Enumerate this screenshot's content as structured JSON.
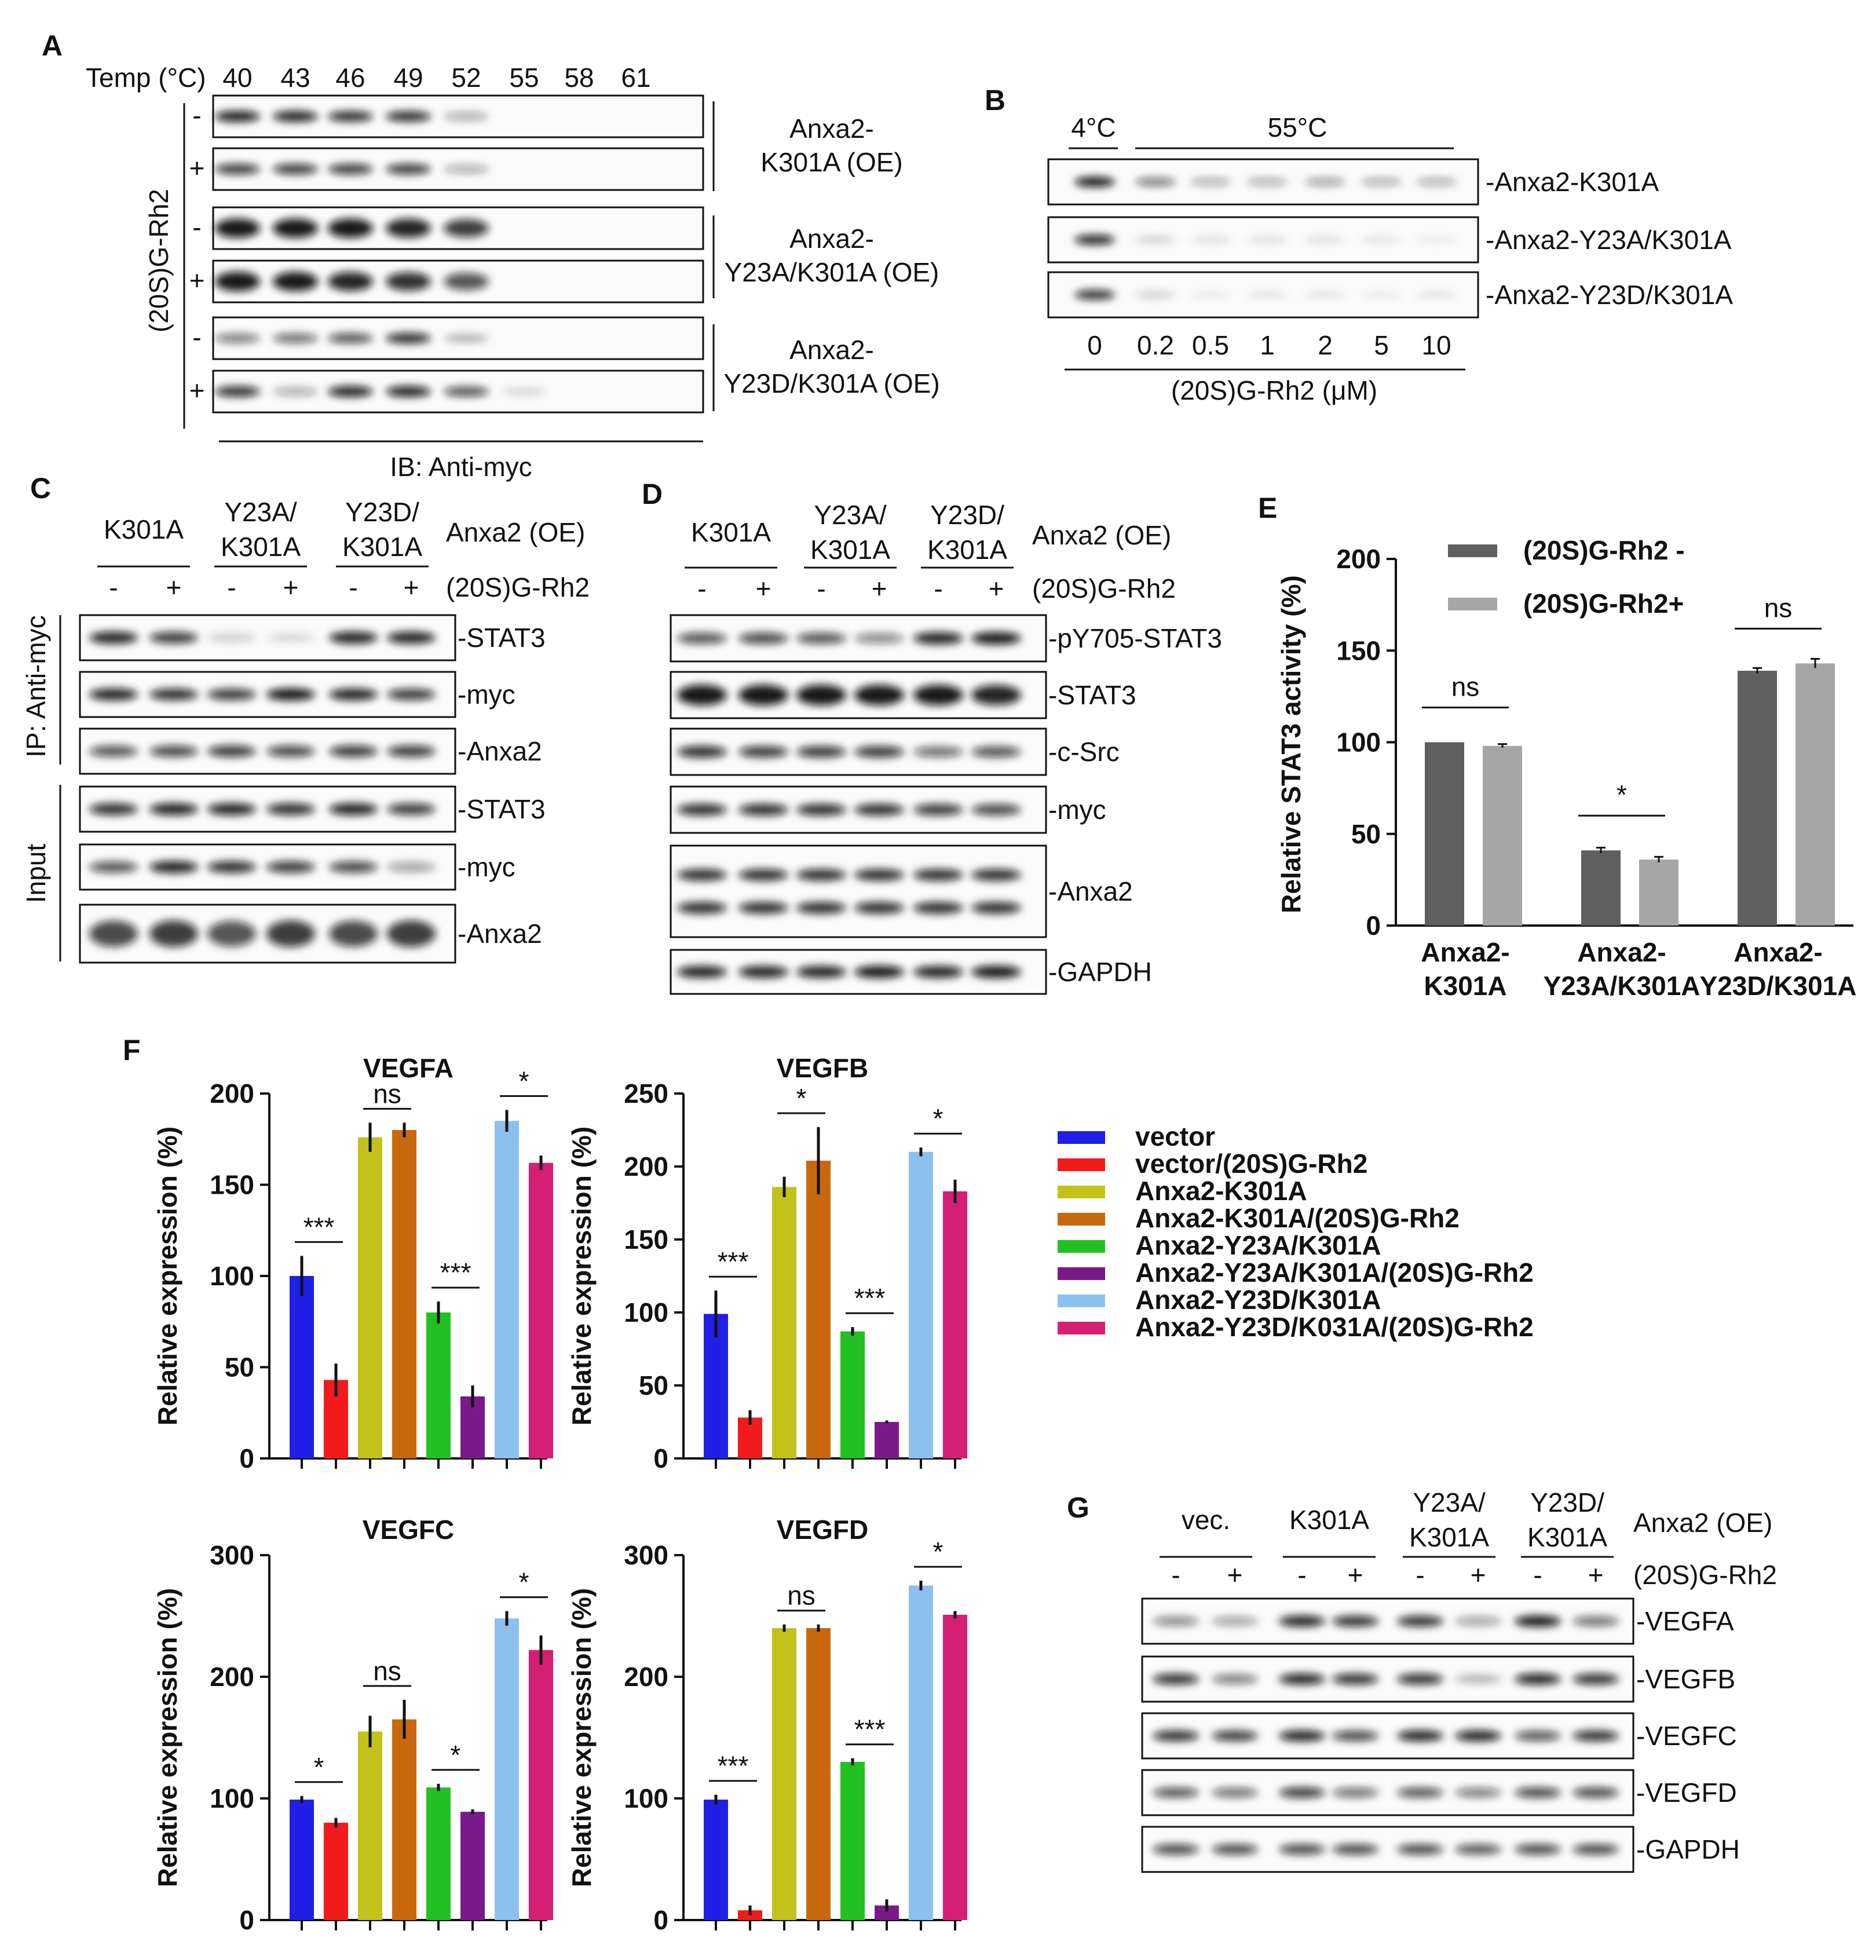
{
  "colors": {
    "vector": "#1f1fe6",
    "vector_rh2": "#f21b1b",
    "k301a": "#c2c21a",
    "k301a_rh2": "#c8680c",
    "y23a": "#22c122",
    "y23a_rh2": "#7a1a8a",
    "y23d": "#8ec0ef",
    "y23d_rh2": "#d51f74",
    "stat_minus": "#5f5f5f",
    "stat_plus": "#a6a6a6"
  },
  "panelA": {
    "label": "A",
    "temp_header": "Temp (°C)",
    "temps": [
      "40",
      "43",
      "46",
      "49",
      "52",
      "55",
      "58",
      "61"
    ],
    "side_label": "(20S)G-Rh2",
    "signs": [
      "-",
      "+",
      "-",
      "+",
      "-",
      "+"
    ],
    "groups": [
      {
        "line1": "Anxa2-",
        "line2": "K301A (OE)"
      },
      {
        "line1": "Anxa2-",
        "line2": "Y23A/K301A (OE)"
      },
      {
        "line1": "Anxa2-",
        "line2": "Y23D/K301A (OE)"
      }
    ],
    "footer": "IB: Anti-myc"
  },
  "panelB": {
    "label": "B",
    "temp_cold": "4°C",
    "temp_hot": "55°C",
    "blots": [
      "-Anxa2-K301A",
      "-Anxa2-Y23A/K301A",
      "-Anxa2-Y23D/K301A"
    ],
    "doses": [
      "0",
      "0.2",
      "0.5",
      "1",
      "2",
      "5",
      "10"
    ],
    "dose_title": "(20S)G-Rh2 (μM)"
  },
  "panelC": {
    "label": "C",
    "groups": [
      {
        "line1": "K301A",
        "line2": ""
      },
      {
        "line1": "Y23A/",
        "line2": "K301A"
      },
      {
        "line1": "Y23D/",
        "line2": "K301A"
      }
    ],
    "oe_label": "Anxa2 (OE)",
    "treat_label": "(20S)G-Rh2",
    "signs": [
      "-",
      "+",
      "-",
      "+",
      "-",
      "+"
    ],
    "ip_label": "IP: Anti-myc",
    "input_label": "Input",
    "blots": [
      "-STAT3",
      "-myc",
      "-Anxa2",
      "-STAT3",
      "-myc",
      "-Anxa2"
    ]
  },
  "panelD": {
    "label": "D",
    "groups": [
      {
        "line1": "K301A",
        "line2": ""
      },
      {
        "line1": "Y23A/",
        "line2": "K301A"
      },
      {
        "line1": "Y23D/",
        "line2": "K301A"
      }
    ],
    "oe_label": "Anxa2 (OE)",
    "treat_label": "(20S)G-Rh2",
    "signs": [
      "-",
      "+",
      "-",
      "+",
      "-",
      "+"
    ],
    "blots": [
      "-pY705-STAT3",
      "-STAT3",
      "-c-Src",
      "-myc",
      "-Anxa2",
      "-GAPDH"
    ]
  },
  "panelE": {
    "label": "E",
    "chart_data": {
      "type": "bar",
      "ylabel": "Relative STAT3 activity (%)",
      "ylim": [
        0,
        200
      ],
      "yticks": [
        0,
        50,
        100,
        150,
        200
      ],
      "categories": [
        {
          "line1": "Anxa2-",
          "line2": "K301A"
        },
        {
          "line1": "Anxa2-",
          "line2": "Y23A/K301A"
        },
        {
          "line1": "Anxa2-",
          "line2": "Y23D/K301A"
        }
      ],
      "series": [
        {
          "name": "(20S)G-Rh2 -",
          "values": [
            100,
            41,
            139
          ],
          "errors": [
            0,
            1.5,
            1.5
          ]
        },
        {
          "name": "(20S)G-Rh2+",
          "values": [
            98,
            36,
            143
          ],
          "errors": [
            1,
            1.5,
            2.5
          ]
        }
      ],
      "significance": [
        "ns",
        "*",
        "ns"
      ]
    }
  },
  "panelF": {
    "label": "F",
    "ylabel": "Relative expression (%)",
    "legend": [
      "vector",
      "vector/(20S)G-Rh2",
      "Anxa2-K301A",
      "Anxa2-K301A/(20S)G-Rh2",
      "Anxa2-Y23A/K301A",
      "Anxa2-Y23A/K301A/(20S)G-Rh2",
      "Anxa2-Y23D/K301A",
      "Anxa2-Y23D/K031A/(20S)G-Rh2"
    ],
    "chart_data": [
      {
        "type": "bar",
        "title": "VEGFA",
        "ylim": [
          0,
          200
        ],
        "yticks": [
          0,
          50,
          100,
          150,
          200
        ],
        "values": [
          100,
          43,
          176,
          180,
          80,
          34,
          185,
          162
        ],
        "errors": [
          11,
          9,
          8,
          4,
          6,
          6,
          6,
          4
        ],
        "significance": [
          "***",
          "ns",
          "***",
          "*"
        ]
      },
      {
        "type": "bar",
        "title": "VEGFB",
        "ylim": [
          0,
          250
        ],
        "yticks": [
          0,
          50,
          100,
          150,
          200,
          250
        ],
        "values": [
          99,
          28,
          186,
          204,
          87,
          25,
          210,
          183
        ],
        "errors": [
          16,
          5,
          7,
          23,
          3,
          1,
          3,
          8
        ],
        "significance": [
          "***",
          "*",
          "***",
          "*"
        ]
      },
      {
        "type": "bar",
        "title": "VEGFC",
        "ylim": [
          0,
          300
        ],
        "yticks": [
          0,
          100,
          200,
          300
        ],
        "values": [
          99,
          80,
          155,
          165,
          109,
          89,
          248,
          222
        ],
        "errors": [
          3,
          4,
          13,
          16,
          3,
          2,
          6,
          12
        ],
        "significance": [
          "*",
          "ns",
          "*",
          "*"
        ]
      },
      {
        "type": "bar",
        "title": "VEGFD",
        "ylim": [
          0,
          300
        ],
        "yticks": [
          0,
          100,
          200,
          300
        ],
        "values": [
          99,
          8,
          240,
          240,
          130,
          12,
          275,
          251
        ],
        "errors": [
          4,
          4,
          3,
          3,
          3,
          5,
          4,
          3
        ],
        "significance": [
          "***",
          "ns",
          "***",
          "*"
        ]
      }
    ]
  },
  "panelG": {
    "label": "G",
    "groups": [
      {
        "line1": "vec.",
        "line2": ""
      },
      {
        "line1": "K301A",
        "line2": ""
      },
      {
        "line1": "Y23A/",
        "line2": "K301A"
      },
      {
        "line1": "Y23D/",
        "line2": "K301A"
      }
    ],
    "oe_label": "Anxa2 (OE)",
    "treat_label": "(20S)G-Rh2",
    "signs": [
      "-",
      "+",
      "-",
      "+",
      "-",
      "+",
      "-",
      "+"
    ],
    "blots": [
      "-VEGFA",
      "-VEGFB",
      "-VEGFC",
      "-VEGFD",
      "-GAPDH"
    ]
  }
}
